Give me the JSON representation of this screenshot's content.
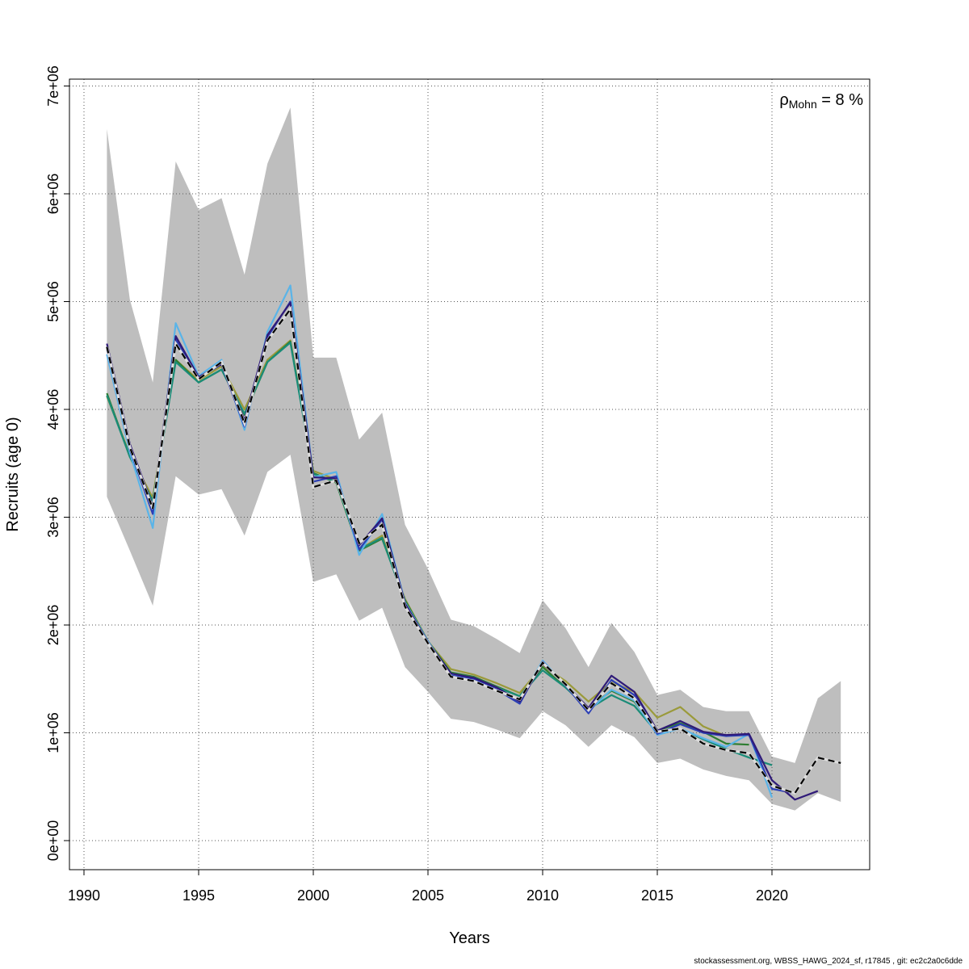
{
  "chart_data": {
    "type": "line",
    "xlabel": "Years",
    "ylabel": "Recruits (age 0)",
    "xlim": [
      1990,
      2024
    ],
    "ylim": [
      0,
      7000000
    ],
    "x_ticks": [
      1990,
      1995,
      2000,
      2005,
      2010,
      2015,
      2020
    ],
    "y_ticks": [
      0,
      1000000,
      2000000,
      3000000,
      4000000,
      5000000,
      6000000,
      7000000
    ],
    "y_tick_labels": [
      "0e+00",
      "1e+06",
      "2e+06",
      "3e+06",
      "4e+06",
      "5e+06",
      "6e+06",
      "7e+06"
    ],
    "grid": true,
    "annotation": {
      "rho_symbol": "ρ",
      "rho_subscript": "Mohn",
      "rho_value": " = 8 %"
    },
    "confidence_band": {
      "x": [
        1991,
        1992,
        1993,
        1994,
        1995,
        1996,
        1997,
        1998,
        1999,
        2000,
        2001,
        2002,
        2003,
        2004,
        2005,
        2006,
        2007,
        2008,
        2009,
        2010,
        2011,
        2012,
        2013,
        2014,
        2015,
        2016,
        2017,
        2018,
        2019,
        2020,
        2021,
        2022,
        2023
      ],
      "upper": [
        6600000,
        5020000,
        4250000,
        6300000,
        5850000,
        5960000,
        5250000,
        6280000,
        6800000,
        4480000,
        4480000,
        3720000,
        3970000,
        2930000,
        2520000,
        2050000,
        1990000,
        1870000,
        1740000,
        2230000,
        1970000,
        1610000,
        2020000,
        1750000,
        1350000,
        1400000,
        1240000,
        1200000,
        1200000,
        780000,
        720000,
        1320000,
        1480000
      ],
      "lower": [
        3190000,
        2690000,
        2180000,
        3380000,
        3210000,
        3260000,
        2830000,
        3420000,
        3580000,
        2400000,
        2470000,
        2040000,
        2160000,
        1610000,
        1380000,
        1130000,
        1100000,
        1030000,
        950000,
        1200000,
        1070000,
        870000,
        1070000,
        960000,
        720000,
        760000,
        660000,
        600000,
        560000,
        340000,
        280000,
        440000,
        360000
      ]
    },
    "series": [
      {
        "color": "#000000",
        "dashed": true,
        "x": [
          1991,
          1992,
          1993,
          1994,
          1995,
          1996,
          1997,
          1998,
          1999,
          2000,
          2001,
          2002,
          2003,
          2004,
          2005,
          2006,
          2007,
          2008,
          2009,
          2010,
          2011,
          2012,
          2013,
          2014,
          2015,
          2016,
          2017,
          2018,
          2019,
          2020,
          2021,
          2022,
          2023
        ],
        "values": [
          4580000,
          3650000,
          3080000,
          4610000,
          4280000,
          4440000,
          3870000,
          4640000,
          4930000,
          3280000,
          3340000,
          2760000,
          2930000,
          2170000,
          1830000,
          1520000,
          1480000,
          1390000,
          1310000,
          1650000,
          1450000,
          1210000,
          1460000,
          1320000,
          1010000,
          1040000,
          900000,
          840000,
          810000,
          510000,
          440000,
          770000,
          720000
        ]
      },
      {
        "color": "#2f1a78",
        "dashed": false,
        "x": [
          1991,
          1992,
          1993,
          1994,
          1995,
          1996,
          1997,
          1998,
          1999,
          2000,
          2001,
          2002,
          2003,
          2004,
          2005,
          2006,
          2007,
          2008,
          2009,
          2010,
          2011,
          2012,
          2013,
          2014,
          2015,
          2016,
          2017,
          2018,
          2019,
          2020,
          2021,
          2022
        ],
        "values": [
          4610000,
          3680000,
          3100000,
          4680000,
          4300000,
          4420000,
          3900000,
          4690000,
          4990000,
          3370000,
          3360000,
          2740000,
          2990000,
          2200000,
          1840000,
          1550000,
          1510000,
          1420000,
          1290000,
          1640000,
          1450000,
          1230000,
          1530000,
          1380000,
          1020000,
          1110000,
          1010000,
          980000,
          990000,
          560000,
          380000,
          460000
        ]
      },
      {
        "color": "#2b3fb5",
        "dashed": false,
        "x": [
          1991,
          1992,
          1993,
          1994,
          1995,
          1996,
          1997,
          1998,
          1999,
          2000,
          2001,
          2002,
          2003,
          2004,
          2005,
          2006,
          2007,
          2008,
          2009,
          2010,
          2011,
          2012,
          2013,
          2014,
          2015,
          2016,
          2017,
          2018,
          2019,
          2020,
          2021
        ],
        "values": [
          4560000,
          3630000,
          3030000,
          4650000,
          4290000,
          4420000,
          3840000,
          4670000,
          5000000,
          3330000,
          3380000,
          2700000,
          2980000,
          2190000,
          1840000,
          1530000,
          1500000,
          1400000,
          1270000,
          1660000,
          1440000,
          1180000,
          1490000,
          1350000,
          990000,
          1080000,
          1000000,
          970000,
          980000,
          480000,
          440000
        ]
      },
      {
        "color": "#5ab4e8",
        "dashed": false,
        "x": [
          1991,
          1992,
          1993,
          1994,
          1995,
          1996,
          1997,
          1998,
          1999,
          2000,
          2001,
          2002,
          2003,
          2004,
          2005,
          2006,
          2007,
          2008,
          2009,
          2010,
          2011,
          2012,
          2013,
          2014,
          2015,
          2016,
          2017,
          2018,
          2019,
          2020
        ],
        "values": [
          4510000,
          3600000,
          2900000,
          4800000,
          4310000,
          4460000,
          3810000,
          4720000,
          5150000,
          3370000,
          3420000,
          2650000,
          3030000,
          2210000,
          1850000,
          1540000,
          1500000,
          1400000,
          1300000,
          1670000,
          1440000,
          1200000,
          1400000,
          1300000,
          980000,
          1040000,
          950000,
          870000,
          990000,
          400000
        ]
      },
      {
        "color": "#1a8c78",
        "dashed": false,
        "x": [
          1991,
          1992,
          1993,
          1994,
          1995,
          1996,
          1997,
          1998,
          1999,
          2000,
          2001,
          2002,
          2003,
          2004,
          2005,
          2006,
          2007,
          2008,
          2009,
          2010,
          2011,
          2012,
          2013,
          2014,
          2015,
          2016,
          2017,
          2018,
          2019,
          2020
        ],
        "values": [
          4130000,
          3560000,
          3150000,
          4440000,
          4250000,
          4370000,
          3960000,
          4440000,
          4620000,
          3400000,
          3330000,
          2700000,
          2810000,
          2210000,
          1840000,
          1550000,
          1510000,
          1420000,
          1340000,
          1580000,
          1420000,
          1220000,
          1350000,
          1250000,
          1000000,
          1040000,
          940000,
          850000,
          770000,
          700000
        ]
      },
      {
        "color": "#2e7d32",
        "dashed": false,
        "x": [
          1991,
          1992,
          1993,
          1994,
          1995,
          1996,
          1997,
          1998,
          1999,
          2000,
          2001,
          2002,
          2003,
          2004,
          2005,
          2006,
          2007,
          2008,
          2009,
          2010,
          2011,
          2012,
          2013,
          2014,
          2015,
          2016,
          2017,
          2018,
          2019
        ],
        "values": [
          4150000,
          3560000,
          3150000,
          4460000,
          4250000,
          4370000,
          3950000,
          4440000,
          4630000,
          3410000,
          3320000,
          2690000,
          2800000,
          2230000,
          1850000,
          1560000,
          1520000,
          1430000,
          1340000,
          1610000,
          1420000,
          1230000,
          1390000,
          1290000,
          1020000,
          1090000,
          1010000,
          900000,
          890000
        ]
      },
      {
        "color": "#9a9a3a",
        "dashed": false,
        "x": [
          1991,
          1992,
          1993,
          1994,
          1995,
          1996,
          1997,
          1998,
          1999,
          2000,
          2001,
          2002,
          2003,
          2004,
          2005,
          2006,
          2007,
          2008,
          2009,
          2010,
          2011,
          2012,
          2013,
          2014,
          2015,
          2016,
          2017,
          2018
        ],
        "values": [
          4120000,
          3580000,
          3180000,
          4460000,
          4270000,
          4400000,
          4000000,
          4460000,
          4640000,
          3430000,
          3350000,
          2700000,
          2830000,
          2240000,
          1850000,
          1590000,
          1540000,
          1460000,
          1370000,
          1620000,
          1480000,
          1290000,
          1470000,
          1380000,
          1140000,
          1240000,
          1060000,
          970000
        ]
      }
    ]
  },
  "footer": "stockassessment.org, WBSS_HAWG_2024_sf, r17845 , git: ec2c2a0c6dde"
}
